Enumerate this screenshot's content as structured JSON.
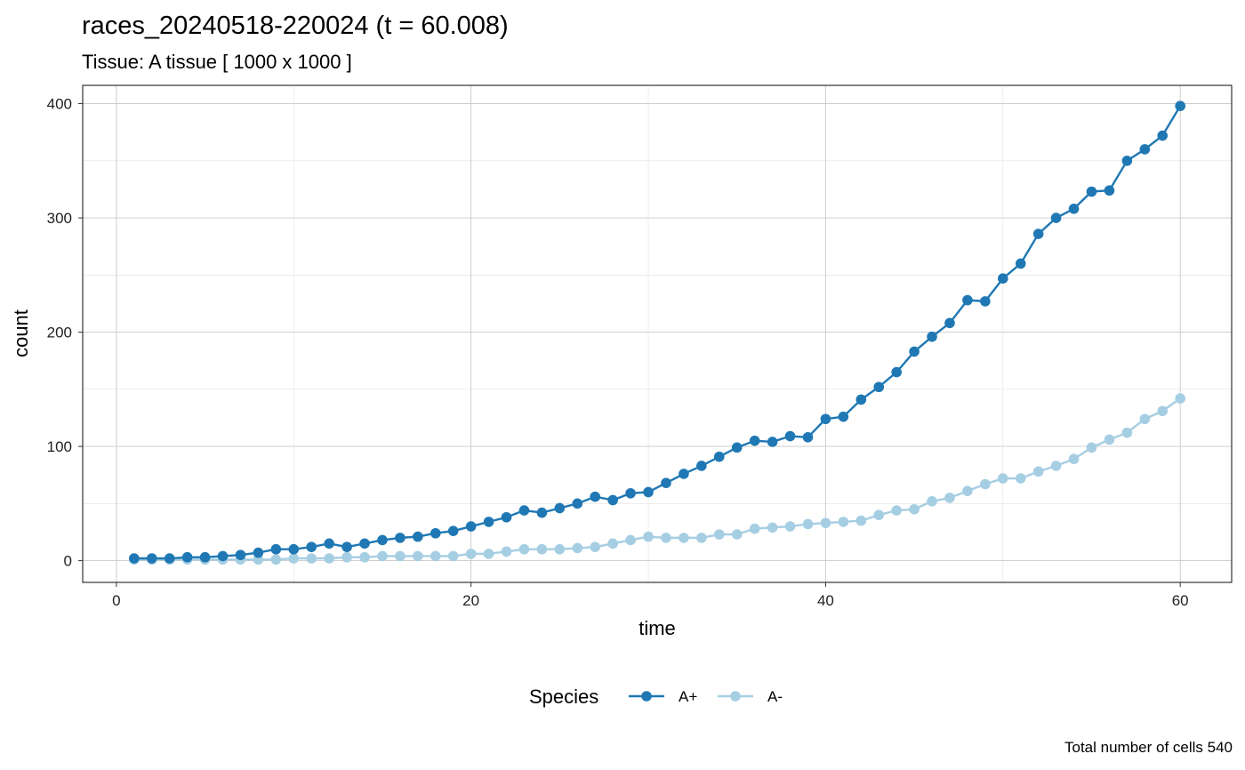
{
  "chart_data": {
    "type": "line",
    "title": "races_20240518-220024 (t = 60.008)",
    "subtitle": "Tissue: A tissue [ 1000 x 1000 ]",
    "xlabel": "time",
    "ylabel": "count",
    "caption": "Total number of cells 540",
    "xlim": [
      -1.9,
      62.9
    ],
    "ylim": [
      -19,
      416
    ],
    "xticks": [
      0,
      20,
      40,
      60
    ],
    "yticks": [
      0,
      100,
      200,
      300,
      400
    ],
    "grid": true,
    "legend": {
      "title": "Species",
      "position": "bottom"
    },
    "x": [
      1,
      2,
      3,
      4,
      5,
      6,
      7,
      8,
      9,
      10,
      11,
      12,
      13,
      14,
      15,
      16,
      17,
      18,
      19,
      20,
      21,
      22,
      23,
      24,
      25,
      26,
      27,
      28,
      29,
      30,
      31,
      32,
      33,
      34,
      35,
      36,
      37,
      38,
      39,
      40,
      41,
      42,
      43,
      44,
      45,
      46,
      47,
      48,
      49,
      50,
      51,
      52,
      53,
      54,
      55,
      56,
      57,
      58,
      59,
      60
    ],
    "series": [
      {
        "name": "A+",
        "color": "#1f78b4",
        "values": [
          2,
          2,
          2,
          3,
          3,
          4,
          5,
          7,
          10,
          10,
          12,
          15,
          12,
          15,
          18,
          20,
          21,
          24,
          26,
          30,
          34,
          38,
          44,
          42,
          46,
          50,
          56,
          53,
          59,
          60,
          68,
          76,
          83,
          91,
          99,
          105,
          104,
          109,
          108,
          124,
          126,
          141,
          152,
          165,
          183,
          196,
          208,
          228,
          227,
          247,
          260,
          286,
          300,
          308,
          323,
          324,
          350,
          360,
          372,
          398
        ]
      },
      {
        "name": "A-",
        "color": "#a6cee3",
        "values": [
          1,
          1,
          1,
          1,
          1,
          1,
          1,
          1,
          1,
          2,
          2,
          2,
          3,
          3,
          4,
          4,
          4,
          4,
          4,
          6,
          6,
          8,
          10,
          10,
          10,
          11,
          12,
          15,
          18,
          21,
          20,
          20,
          20,
          23,
          23,
          28,
          29,
          30,
          32,
          33,
          34,
          35,
          40,
          44,
          45,
          52,
          55,
          61,
          67,
          72,
          72,
          78,
          83,
          89,
          99,
          106,
          112,
          124,
          131,
          142
        ]
      }
    ]
  }
}
